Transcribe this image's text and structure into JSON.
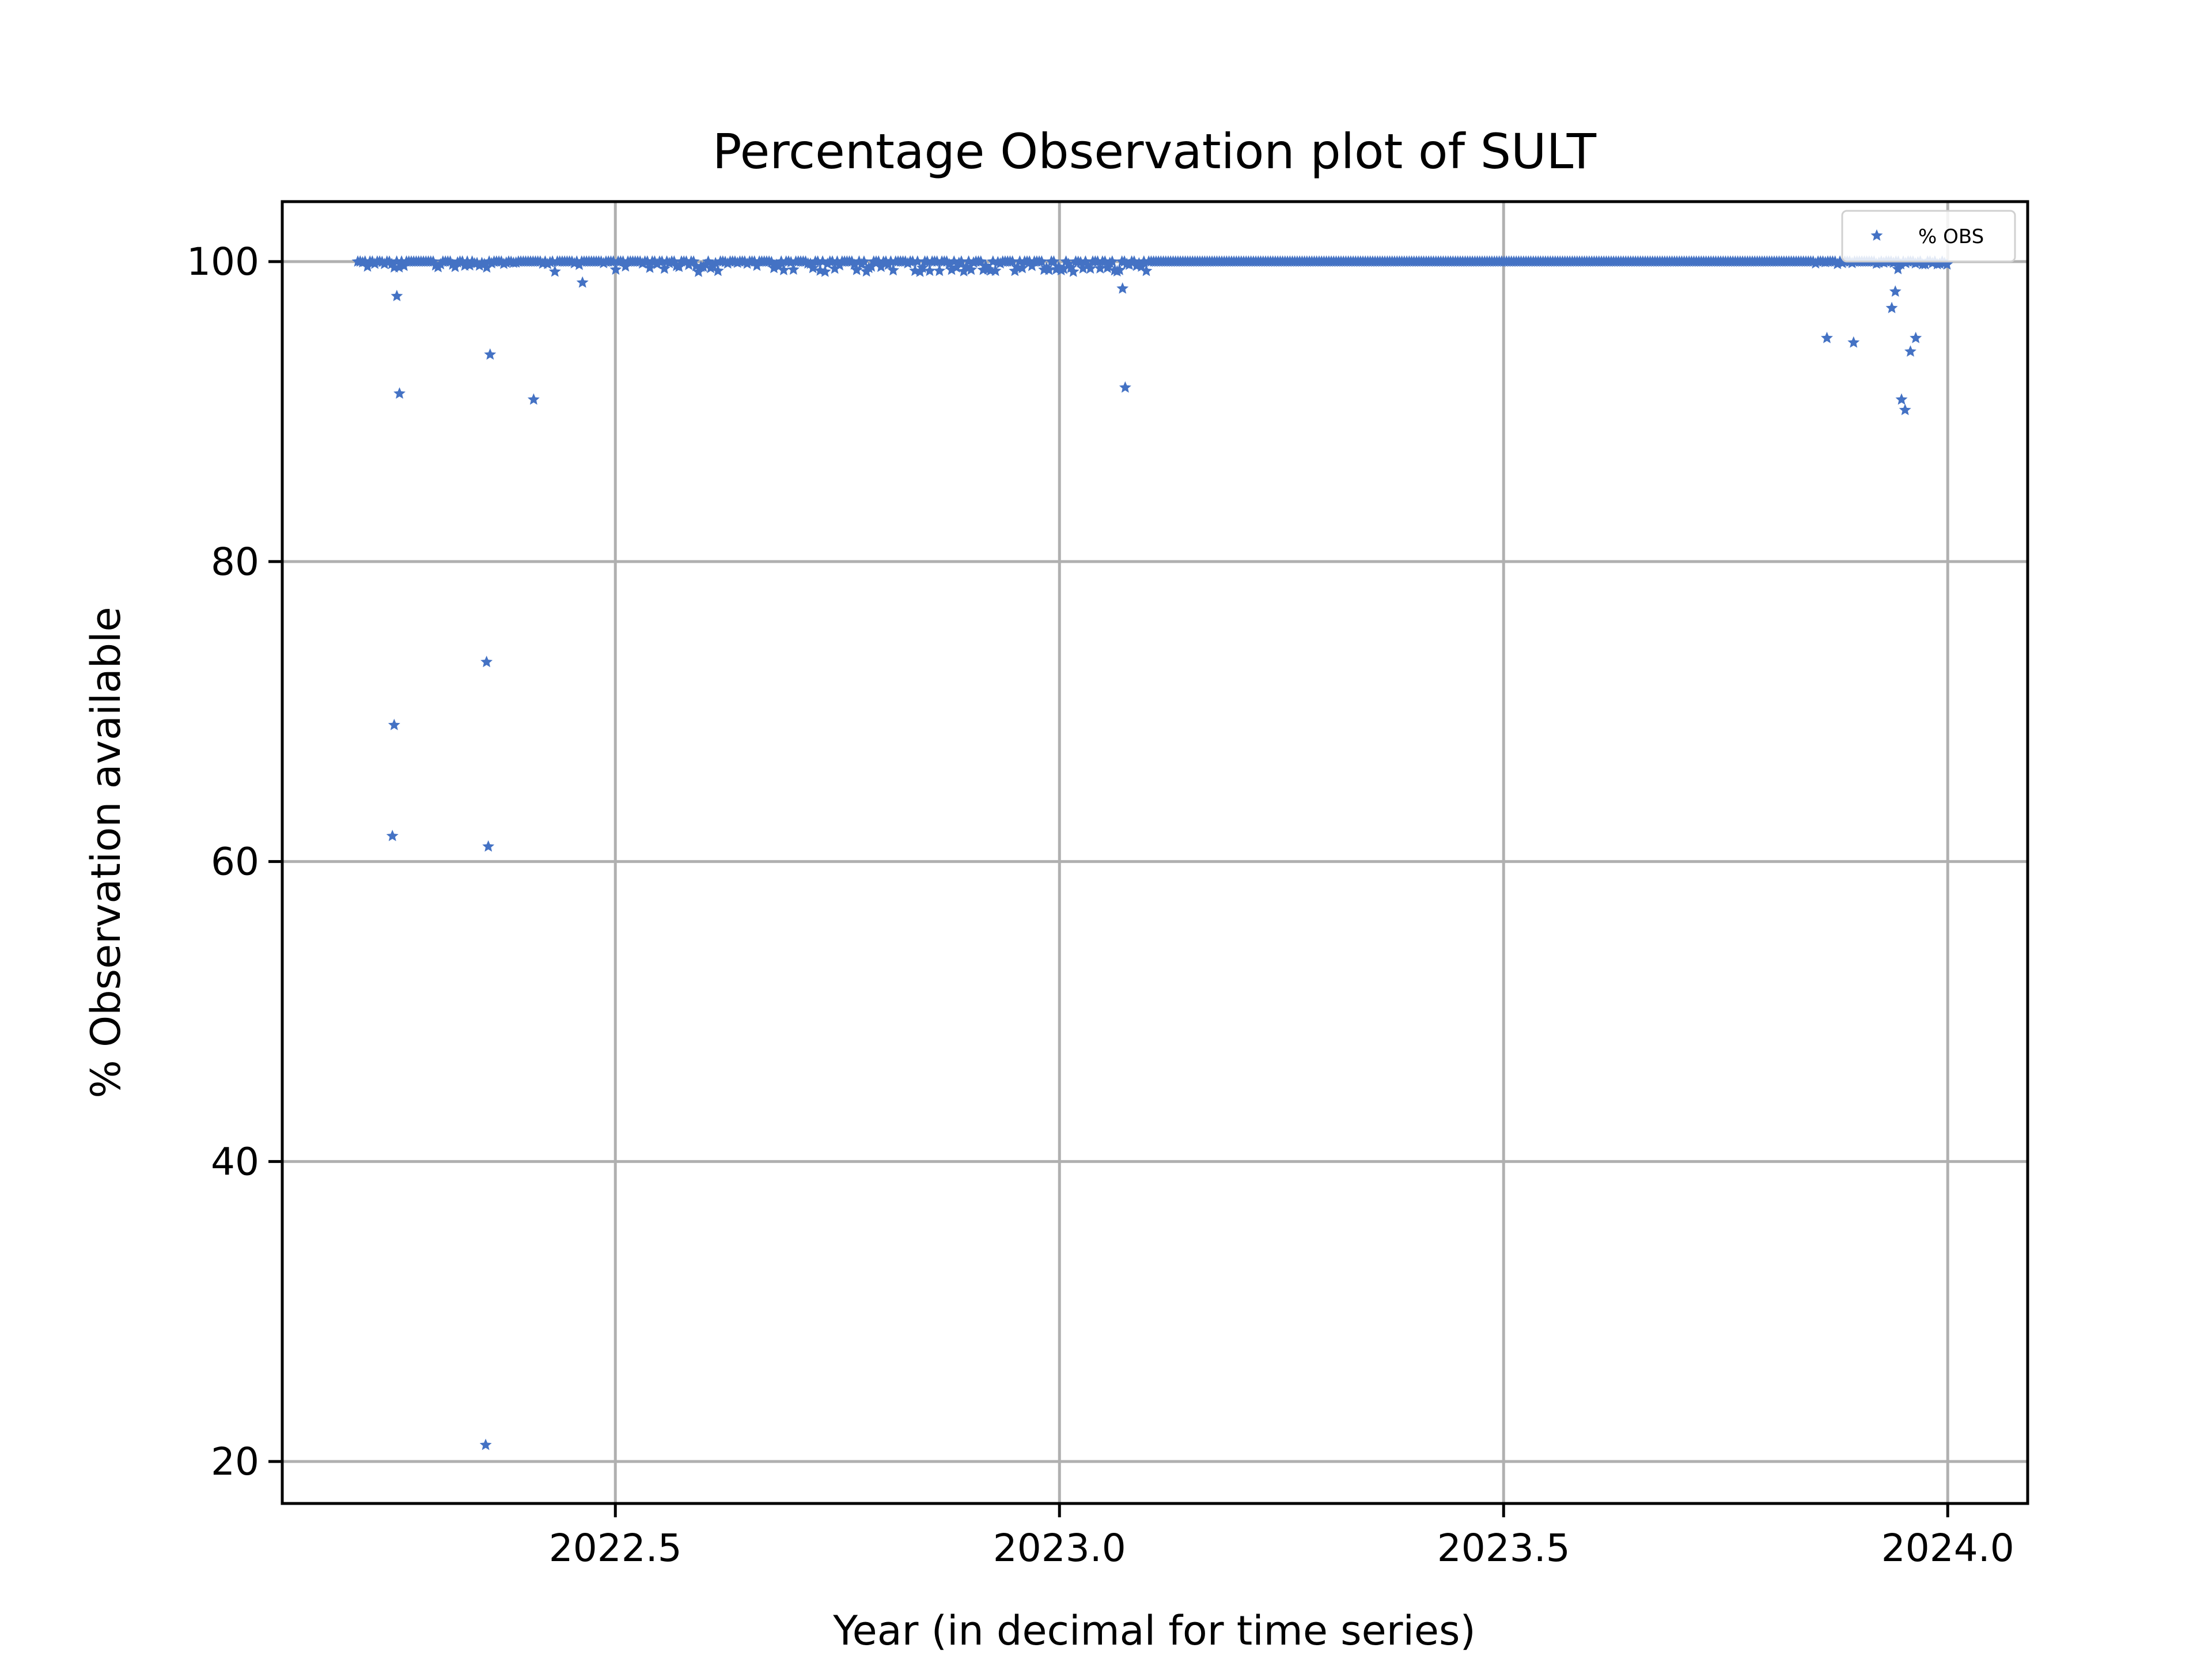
{
  "chart_data": {
    "type": "scatter",
    "title": "Percentage Observation plot of SULT",
    "xlabel": "Year (in decimal for time series)",
    "ylabel": "% Observation available",
    "xlim": [
      2022.125,
      2024.09
    ],
    "ylim": [
      17.2,
      104.0
    ],
    "xticks": [
      2022.5,
      2023.0,
      2023.5,
      2024.0
    ],
    "xtick_labels": [
      "2022.5",
      "2023.0",
      "2023.5",
      "2024.0"
    ],
    "yticks": [
      20,
      40,
      60,
      80,
      100
    ],
    "ytick_labels": [
      "20",
      "40",
      "60",
      "80",
      "100"
    ],
    "grid": true,
    "legend": {
      "position": "top-right"
    },
    "marker": "star",
    "color": "#4472c4",
    "series": [
      {
        "name": "% OBS",
        "color": "#4472c4",
        "points": [
          [
            2022.249,
            61.7
          ],
          [
            2022.251,
            69.1
          ],
          [
            2022.254,
            97.7
          ],
          [
            2022.257,
            91.2
          ],
          [
            2022.354,
            21.1
          ],
          [
            2022.355,
            73.3
          ],
          [
            2022.357,
            61.0
          ],
          [
            2022.359,
            93.8
          ],
          [
            2022.408,
            90.8
          ],
          [
            2022.463,
            98.6
          ],
          [
            2023.071,
            98.2
          ],
          [
            2023.074,
            91.6
          ],
          [
            2023.864,
            94.9
          ],
          [
            2023.894,
            94.6
          ],
          [
            2023.937,
            96.9
          ],
          [
            2023.941,
            98.0
          ],
          [
            2023.944,
            99.5
          ],
          [
            2023.948,
            90.8
          ],
          [
            2023.952,
            90.1
          ],
          [
            2023.958,
            94.0
          ],
          [
            2023.964,
            94.9
          ]
        ],
        "dense_band": {
          "x_start": 2022.21,
          "x_end": 2024.0,
          "step": 0.00274,
          "y_main": 100.0,
          "dips": [
            {
              "x_start": 2022.21,
              "x_end": 2022.43,
              "y_min": 99.6
            },
            {
              "x_start": 2022.43,
              "x_end": 2023.1,
              "y_min": 99.3
            },
            {
              "x_start": 2023.85,
              "x_end": 2024.0,
              "y_min": 99.8
            }
          ]
        }
      }
    ]
  }
}
